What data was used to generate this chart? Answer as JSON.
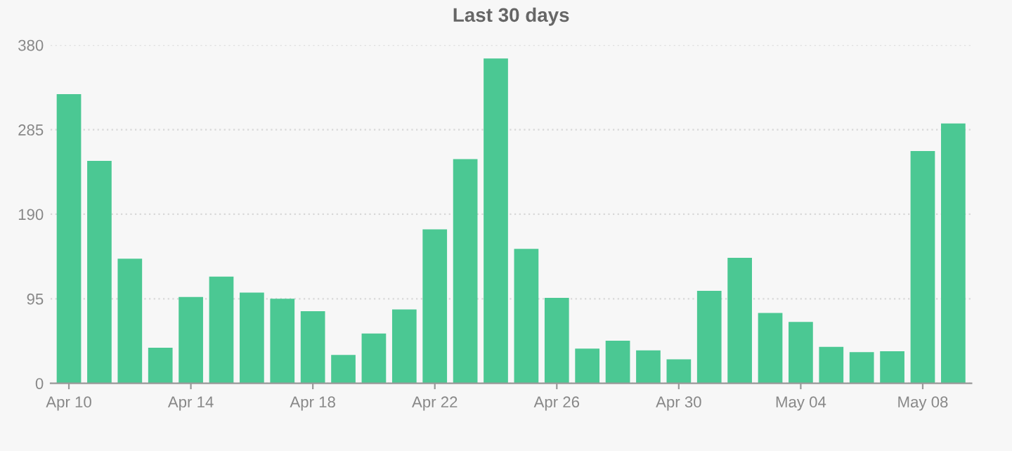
{
  "chart_data": {
    "type": "bar",
    "title": "Last 30 days",
    "categories": [
      "Apr 10",
      null,
      null,
      null,
      "Apr 14",
      null,
      null,
      null,
      "Apr 18",
      null,
      null,
      null,
      "Apr 22",
      null,
      null,
      null,
      "Apr 26",
      null,
      null,
      null,
      "Apr 30",
      null,
      null,
      null,
      "May 04",
      null,
      null,
      null,
      "May 08",
      null
    ],
    "series": [
      {
        "color": "#4bc893",
        "values": [
          325,
          250,
          140,
          40,
          97,
          120,
          102,
          95,
          81,
          32,
          56,
          83,
          173,
          252,
          365,
          151,
          96,
          39,
          48,
          37,
          27,
          104,
          141,
          79,
          69,
          41,
          35,
          36,
          261,
          292
        ]
      }
    ],
    "ylim": [
      0,
      380
    ],
    "yticks": [
      0,
      95,
      190,
      285,
      380
    ],
    "grid": "y",
    "legend": false
  }
}
